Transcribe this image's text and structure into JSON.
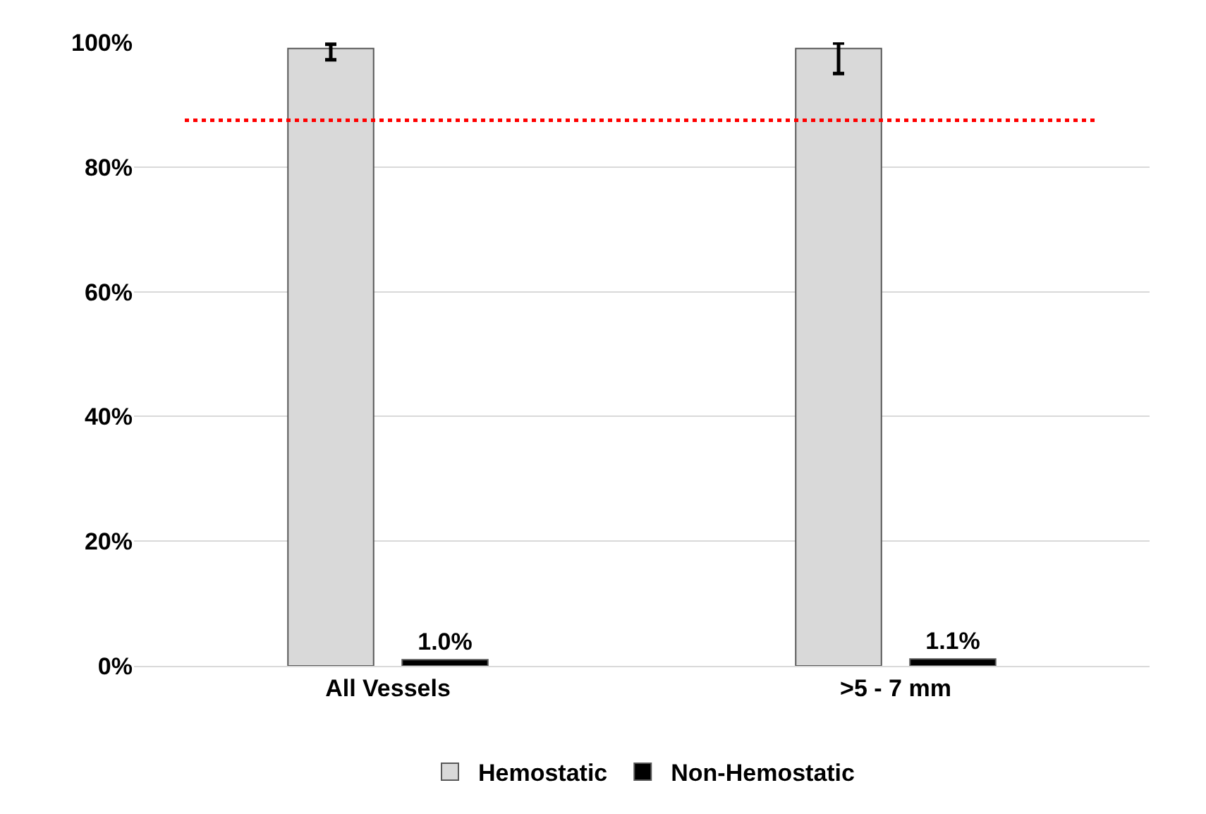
{
  "chart_data": {
    "type": "bar",
    "categories": [
      "All Vessels",
      ">5 - 7 mm"
    ],
    "series": [
      {
        "name": "Hemostatic",
        "color": "#d9d9d9",
        "values": [
          99,
          99
        ],
        "errors": [
          [
            97.2,
            99.7
          ],
          [
            95,
            99.9
          ]
        ]
      },
      {
        "name": "Non-Hemostatic",
        "color": "#000000",
        "values": [
          1.0,
          1.1
        ],
        "value_labels": [
          "1.0%",
          "1.1%"
        ]
      }
    ],
    "ylim": [
      0,
      100
    ],
    "yticks": [
      {
        "value": 0,
        "label": "0%"
      },
      {
        "value": 20,
        "label": "20%"
      },
      {
        "value": 40,
        "label": "40%"
      },
      {
        "value": 60,
        "label": "60%"
      },
      {
        "value": 80,
        "label": "80%"
      },
      {
        "value": 100,
        "label": "100%"
      }
    ],
    "grid": "y",
    "legend": "bottom",
    "ref_lines": [
      {
        "axis": "y",
        "value": 87.5,
        "color": "#ff0000",
        "line_style": "dotted"
      }
    ]
  }
}
